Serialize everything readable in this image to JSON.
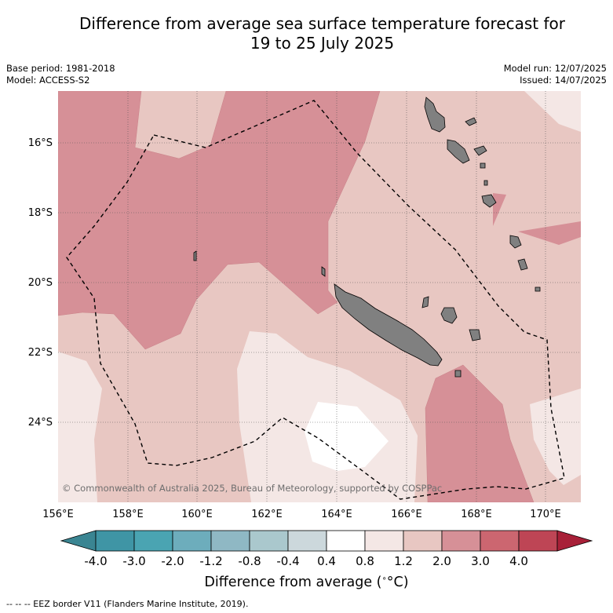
{
  "title_line1": "Difference from average sea surface temperature forecast for",
  "title_line2": "19 to 25 July 2025",
  "base_period": "Base period: 1981-2018",
  "model": "Model: ACCESS-S2",
  "model_run": "Model run: 12/07/2025",
  "issued": "Issued: 14/07/2025",
  "copyright": "© Commonwealth of Australia 2025, Bureau of Meteorology, supported by COSPPac",
  "lat_labels": [
    "16°S",
    "18°S",
    "20°S",
    "22°S",
    "24°S"
  ],
  "lon_labels": [
    "156°E",
    "158°E",
    "160°E",
    "162°E",
    "164°E",
    "166°E",
    "168°E",
    "170°E"
  ],
  "colorbar": {
    "labels": [
      "-4.0",
      "-3.0",
      "-2.0",
      "-1.2",
      "-0.8",
      "-0.4",
      "0.4",
      "0.8",
      "1.2",
      "2.0",
      "3.0",
      "4.0"
    ],
    "colors": [
      "#3f95a5",
      "#4aa4b2",
      "#6dadbc",
      "#8fb8c4",
      "#aac8cd",
      "#ccd8dc",
      "#ffffff",
      "#f4e7e5",
      "#e8c7c2",
      "#d69097",
      "#cc6670",
      "#be4555"
    ],
    "under_color": "#3a8592",
    "over_color": "#a82038",
    "title": "Difference from average (",
    "title_unit": "°C)"
  },
  "footer": "--  --  -- EEZ border V11 (Flanders Marine Institute, 2019).",
  "map_colors": {
    "lightest": "#f4e7e5",
    "light": "#e8c7c2",
    "medium": "#d69097",
    "white": "#ffffff",
    "land": "#808080"
  }
}
